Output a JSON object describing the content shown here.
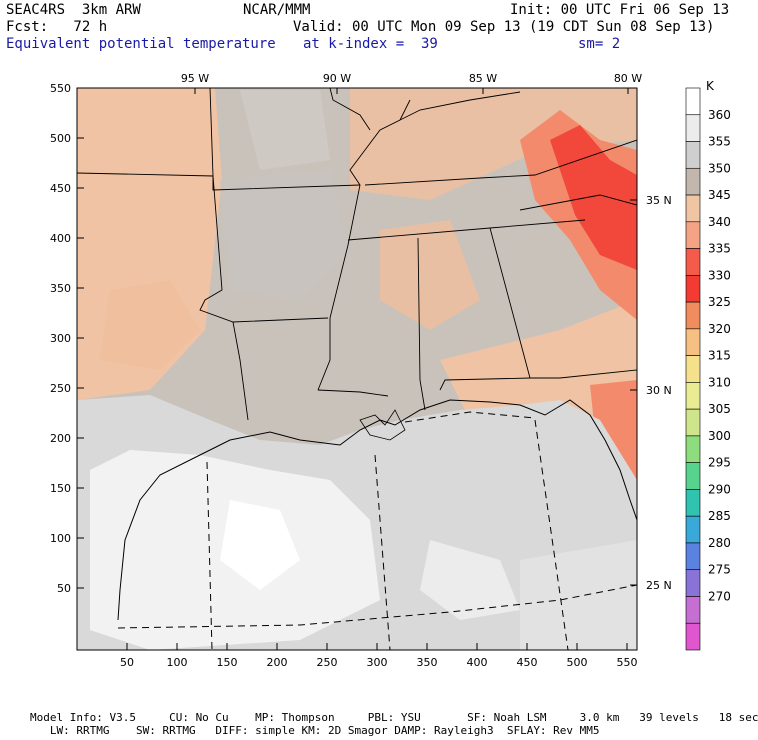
{
  "header": {
    "model": "SEAC4RS  3km ARW",
    "org": "NCAR/MMM",
    "init": "Init: 00 UTC Fri 06 Sep 13",
    "fcst": "Fcst:   72 h",
    "valid": "Valid: 00 UTC Mon 09 Sep 13 (19 CDT Sun 08 Sep 13)",
    "field": "Equivalent potential temperature",
    "level": "at k-index =  39",
    "smooth": "sm= 2"
  },
  "axes": {
    "x_ticks": [
      "50",
      "100",
      "150",
      "200",
      "250",
      "300",
      "350",
      "400",
      "450",
      "500",
      "550"
    ],
    "y_ticks": [
      "50",
      "100",
      "150",
      "200",
      "250",
      "300",
      "350",
      "400",
      "450",
      "500",
      "550"
    ],
    "lon_labels": [
      "95 W",
      "90 W",
      "85 W",
      "80 W"
    ],
    "lat_labels": [
      "35 N",
      "30 N",
      "25 N"
    ]
  },
  "legend": {
    "unit": "K",
    "levels": [
      "360",
      "355",
      "350",
      "345",
      "340",
      "335",
      "330",
      "325",
      "320",
      "315",
      "310",
      "305",
      "300",
      "295",
      "290",
      "285",
      "280",
      "275",
      "270"
    ],
    "colors": [
      "#ffffff",
      "#ececec",
      "#cfcfcf",
      "#c2b7ac",
      "#f0c5a3",
      "#f4a485",
      "#f55b4b",
      "#f33a33",
      "#f08c5e",
      "#f5c082",
      "#f5e08c",
      "#e9ec93",
      "#cfe58b",
      "#8ddc7e",
      "#57d38d",
      "#2fc3b0",
      "#3aa8d8",
      "#5b82e0",
      "#8a73d6",
      "#c46fd1",
      "#e056cf"
    ]
  },
  "footer": {
    "line1": "Model Info: V3.5     CU: No Cu    MP: Thompson     PBL: YSU       SF: Noah LSM     3.0 km   39 levels   18 sec",
    "line2": "   LW: RRTMG    SW: RRTMG   DIFF: simple KM: 2D Smagor DAMP: Rayleigh3  SFLAY: Rev MM5"
  },
  "map": {
    "region": "Southeastern US and Gulf of Mexico",
    "colors": {
      "gulf_open": "#f2f2f2",
      "gulf_mid": "#d9d9d9",
      "land_gray": "#c9c2bb",
      "land_peach": "#efc3a3",
      "hot_orange": "#f48a6c",
      "hot_red": "#f2473b",
      "white_patch": "#ffffff"
    }
  }
}
